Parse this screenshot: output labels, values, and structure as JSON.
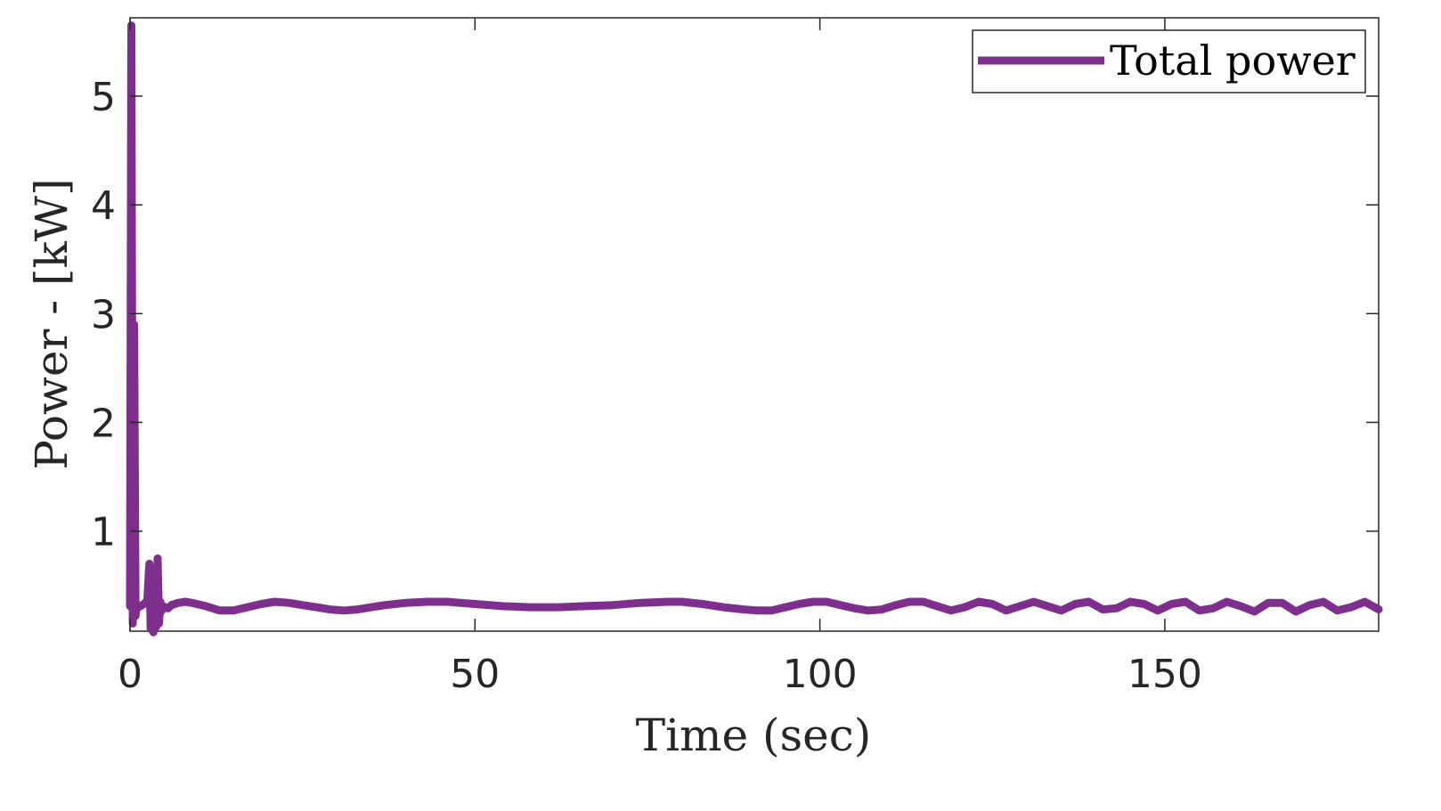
{
  "chart_data": {
    "type": "line",
    "xlabel": "Time (sec)",
    "ylabel": "Power - [kW]",
    "xlim": [
      0,
      181
    ],
    "ylim": [
      0.08,
      5.72
    ],
    "xticks": [
      0,
      50,
      100,
      150
    ],
    "xtick_labels": [
      "0",
      "50",
      "100",
      "150"
    ],
    "yticks": [
      1,
      2,
      3,
      4,
      5
    ],
    "ytick_labels": [
      "1",
      "2",
      "3",
      "4",
      "5"
    ],
    "grid": false,
    "legend": {
      "location": "top-right",
      "entries": [
        "Total power"
      ]
    },
    "series": [
      {
        "name": "Total power",
        "color": "#7E2F8E",
        "x": [
          0,
          0.2,
          0.4,
          0.6,
          0.8,
          1.0,
          1.2,
          1.5,
          2.0,
          2.5,
          2.8,
          3.0,
          3.2,
          3.4,
          3.6,
          3.8,
          4.0,
          4.2,
          4.4,
          4.6,
          4.8,
          5.0,
          5.5,
          6,
          7,
          8,
          9,
          11,
          13,
          15,
          17,
          19,
          21,
          23,
          25,
          27,
          29,
          31,
          33,
          35,
          37,
          40,
          43,
          46,
          50,
          54,
          58,
          62,
          66,
          70,
          74,
          78,
          80,
          83,
          86,
          89,
          91,
          93,
          95,
          97,
          99,
          101,
          103,
          105,
          107,
          109,
          111,
          113,
          115,
          117,
          119,
          121,
          123,
          125,
          127,
          129,
          131,
          133,
          135,
          137,
          139,
          141,
          143,
          145,
          147,
          149,
          151,
          153,
          155,
          157,
          159,
          161,
          163,
          165,
          167,
          169,
          171,
          173,
          175,
          177,
          179,
          181
        ],
        "y": [
          0.31,
          5.65,
          0.15,
          2.9,
          0.22,
          0.32,
          0.3,
          0.31,
          0.33,
          0.36,
          0.7,
          0.1,
          0.65,
          0.07,
          0.5,
          0.12,
          0.75,
          0.15,
          0.35,
          0.27,
          0.31,
          0.3,
          0.29,
          0.32,
          0.34,
          0.35,
          0.34,
          0.31,
          0.27,
          0.27,
          0.3,
          0.33,
          0.35,
          0.34,
          0.32,
          0.3,
          0.28,
          0.27,
          0.28,
          0.3,
          0.32,
          0.34,
          0.35,
          0.35,
          0.33,
          0.31,
          0.3,
          0.3,
          0.31,
          0.32,
          0.34,
          0.35,
          0.35,
          0.33,
          0.3,
          0.28,
          0.27,
          0.27,
          0.3,
          0.33,
          0.35,
          0.35,
          0.32,
          0.29,
          0.27,
          0.28,
          0.32,
          0.35,
          0.35,
          0.31,
          0.27,
          0.3,
          0.35,
          0.33,
          0.27,
          0.31,
          0.35,
          0.31,
          0.27,
          0.33,
          0.35,
          0.28,
          0.29,
          0.35,
          0.33,
          0.27,
          0.33,
          0.35,
          0.27,
          0.29,
          0.35,
          0.31,
          0.26,
          0.34,
          0.34,
          0.26,
          0.32,
          0.35,
          0.27,
          0.3,
          0.35,
          0.28
        ]
      }
    ]
  }
}
